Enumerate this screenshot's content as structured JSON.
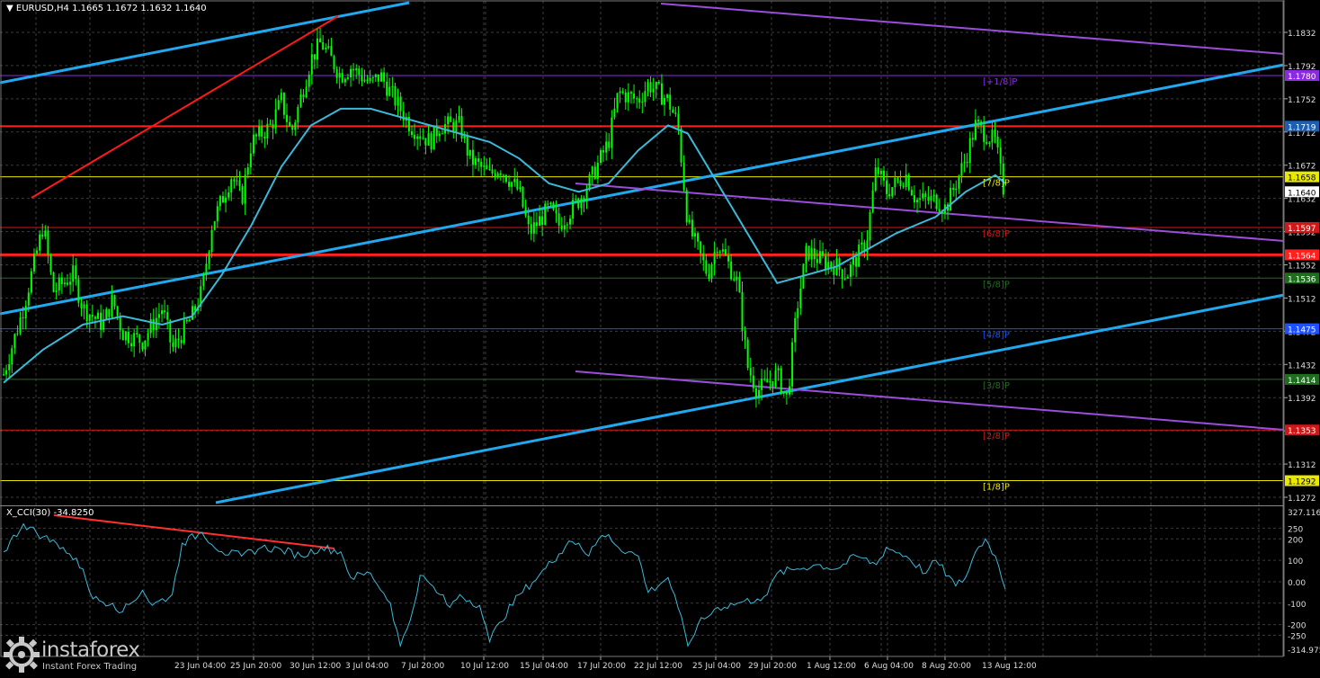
{
  "header": {
    "arrow": "▼",
    "symbol": "EURUSD,H4",
    "ohlc": "1.1665 1.1672 1.1632 1.1640"
  },
  "indicator": {
    "name": "X_CCI(30)",
    "value": "-34.8250"
  },
  "watermark": {
    "brand": "instaforex",
    "tagline": "Instant Forex Trading"
  },
  "colors": {
    "candle": "#00ff00",
    "ma": "#3cb9d8",
    "cci": "#3cb9d8",
    "channel": "#21a9f0",
    "trend": "#ff1a1a",
    "purple": "#9b4ddb",
    "grid": "#3b3b3b"
  },
  "chart_data": {
    "type": "candlestick",
    "symbol": "EURUSD",
    "timeframe": "H4",
    "ylim": [
      1.1262,
      1.1872
    ],
    "price_ticks": [
      "1.1832",
      "1.1792",
      "1.1752",
      "1.1712",
      "1.1672",
      "1.1632",
      "1.1592",
      "1.1552",
      "1.1512",
      "1.1472",
      "1.1432",
      "1.1392",
      "1.1352",
      "1.1312",
      "1.1272"
    ],
    "time_ticks": [
      "23 Jun 04:00",
      "25 Jun 20:00",
      "30 Jun 12:00",
      "3 Jul 04:00",
      "7 Jul 20:00",
      "10 Jul 12:00",
      "15 Jul 04:00",
      "17 Jul 20:00",
      "22 Jul 12:00",
      "25 Jul 04:00",
      "29 Jul 20:00",
      "1 Aug 12:00",
      "6 Aug 04:00",
      "8 Aug 20:00",
      "13 Aug 12:00"
    ],
    "levels": [
      {
        "value": "1.1719",
        "label": "",
        "color": "#ff2020",
        "box": "#1a5fb4",
        "width": 2
      },
      {
        "value": "1.1780",
        "label": "[+1/8]P",
        "color": "#8a2be2",
        "box": "#8a2be2",
        "width": 1
      },
      {
        "value": "1.1658",
        "label": "[7/8]P",
        "color": "#e8e800",
        "box": "#e8e800",
        "width": 1
      },
      {
        "value": "1.1640",
        "label": "",
        "color": "",
        "box": "#ffffff",
        "width": 0
      },
      {
        "value": "1.1597",
        "label": "[6/8]P",
        "color": "#d01818",
        "box": "#d01818",
        "width": 1
      },
      {
        "value": "1.1564",
        "label": "",
        "color": "#ff2020",
        "box": "#ff2020",
        "width": 3
      },
      {
        "value": "1.1536",
        "label": "[5/8]P",
        "color": "#1f6e1f",
        "box": "#1f6e1f",
        "width": 1
      },
      {
        "value": "1.1475",
        "label": "[4/8]P",
        "color": "#1e50ff",
        "box": "#1e50ff",
        "width": 1
      },
      {
        "value": "1.1414",
        "label": "[3/8]P",
        "color": "#1f6e1f",
        "box": "#1f6e1f",
        "width": 1
      },
      {
        "value": "1.1353",
        "label": "[2/8]P",
        "color": "#d01818",
        "box": "#d01818",
        "width": 1
      },
      {
        "value": "1.1292",
        "label": "[1/8]P",
        "color": "#e8e800",
        "box": "#e8e800",
        "width": 1
      }
    ],
    "price_path": [
      [
        0,
        1.142
      ],
      [
        2,
        1.15
      ],
      [
        4,
        1.16
      ],
      [
        5,
        1.152
      ],
      [
        7,
        1.154
      ],
      [
        8,
        1.15
      ],
      [
        10,
        1.148
      ],
      [
        11,
        1.151
      ],
      [
        12,
        1.147
      ],
      [
        14,
        1.146
      ],
      [
        16,
        1.15
      ],
      [
        17,
        1.145
      ],
      [
        19,
        1.149
      ],
      [
        20,
        1.152
      ],
      [
        21,
        1.16
      ],
      [
        23,
        1.166
      ],
      [
        24,
        1.163
      ],
      [
        25,
        1.17
      ],
      [
        27,
        1.172
      ],
      [
        28,
        1.175
      ],
      [
        29,
        1.171
      ],
      [
        31,
        1.18
      ],
      [
        32,
        1.182
      ],
      [
        34,
        1.178
      ],
      [
        35,
        1.179
      ],
      [
        37,
        1.177
      ],
      [
        38,
        1.178
      ],
      [
        40,
        1.174
      ],
      [
        41,
        1.172
      ],
      [
        43,
        1.17
      ],
      [
        44,
        1.172
      ],
      [
        46,
        1.172
      ],
      [
        47,
        1.168
      ],
      [
        49,
        1.166
      ],
      [
        50,
        1.167
      ],
      [
        52,
        1.164
      ],
      [
        53,
        1.159
      ],
      [
        55,
        1.162
      ],
      [
        56,
        1.16
      ],
      [
        58,
        1.163
      ],
      [
        59,
        1.165
      ],
      [
        61,
        1.17
      ],
      [
        62,
        1.176
      ],
      [
        64,
        1.175
      ],
      [
        65,
        1.177
      ],
      [
        67,
        1.175
      ],
      [
        68,
        1.172
      ],
      [
        69,
        1.16
      ],
      [
        71,
        1.154
      ],
      [
        72,
        1.158
      ],
      [
        74,
        1.153
      ],
      [
        75,
        1.143
      ],
      [
        76,
        1.14
      ],
      [
        78,
        1.142
      ],
      [
        79,
        1.139
      ],
      [
        80,
        1.15
      ],
      [
        81,
        1.157
      ],
      [
        82,
        1.156
      ],
      [
        84,
        1.155
      ],
      [
        85,
        1.154
      ],
      [
        87,
        1.158
      ],
      [
        88,
        1.167
      ],
      [
        89,
        1.164
      ],
      [
        91,
        1.166
      ],
      [
        92,
        1.163
      ],
      [
        94,
        1.163
      ],
      [
        95,
        1.162
      ],
      [
        97,
        1.168
      ],
      [
        98,
        1.172
      ],
      [
        100,
        1.17
      ],
      [
        101,
        1.163
      ]
    ],
    "ma_path": [
      [
        0,
        1.141
      ],
      [
        4,
        1.145
      ],
      [
        8,
        1.148
      ],
      [
        12,
        1.149
      ],
      [
        16,
        1.148
      ],
      [
        19,
        1.149
      ],
      [
        22,
        1.154
      ],
      [
        25,
        1.16
      ],
      [
        28,
        1.167
      ],
      [
        31,
        1.172
      ],
      [
        34,
        1.174
      ],
      [
        37,
        1.174
      ],
      [
        40,
        1.173
      ],
      [
        43,
        1.172
      ],
      [
        46,
        1.171
      ],
      [
        49,
        1.17
      ],
      [
        52,
        1.168
      ],
      [
        55,
        1.165
      ],
      [
        58,
        1.164
      ],
      [
        61,
        1.165
      ],
      [
        64,
        1.169
      ],
      [
        67,
        1.172
      ],
      [
        69,
        1.171
      ],
      [
        72,
        1.165
      ],
      [
        75,
        1.159
      ],
      [
        78,
        1.153
      ],
      [
        81,
        1.154
      ],
      [
        84,
        1.155
      ],
      [
        87,
        1.157
      ],
      [
        90,
        1.159
      ],
      [
        94,
        1.161
      ],
      [
        97,
        1.164
      ],
      [
        100,
        1.166
      ],
      [
        101,
        1.165
      ]
    ],
    "cci_ylim": [
      -314.975,
      327.116
    ],
    "cci_ticks": [
      "327.116",
      "250",
      "200",
      "100",
      "0.00",
      "-100",
      "-200",
      "-250",
      "-314.975"
    ],
    "cci_path": [
      [
        0,
        140
      ],
      [
        2,
        270
      ],
      [
        4,
        210
      ],
      [
        6,
        160
      ],
      [
        8,
        60
      ],
      [
        9,
        -80
      ],
      [
        11,
        -100
      ],
      [
        12,
        -140
      ],
      [
        14,
        -40
      ],
      [
        15,
        -110
      ],
      [
        17,
        -60
      ],
      [
        18,
        180
      ],
      [
        20,
        230
      ],
      [
        22,
        140
      ],
      [
        24,
        120
      ],
      [
        26,
        160
      ],
      [
        28,
        150
      ],
      [
        30,
        120
      ],
      [
        32,
        160
      ],
      [
        34,
        140
      ],
      [
        35,
        20
      ],
      [
        37,
        40
      ],
      [
        39,
        -100
      ],
      [
        40,
        -300
      ],
      [
        41,
        -180
      ],
      [
        42,
        30
      ],
      [
        44,
        -60
      ],
      [
        45,
        -120
      ],
      [
        46,
        -60
      ],
      [
        48,
        -110
      ],
      [
        49,
        -280
      ],
      [
        50,
        -190
      ],
      [
        52,
        -60
      ],
      [
        54,
        30
      ],
      [
        56,
        130
      ],
      [
        57,
        190
      ],
      [
        58,
        180
      ],
      [
        59,
        120
      ],
      [
        60,
        200
      ],
      [
        61,
        220
      ],
      [
        62,
        160
      ],
      [
        64,
        120
      ],
      [
        65,
        -50
      ],
      [
        67,
        20
      ],
      [
        68,
        -120
      ],
      [
        69,
        -300
      ],
      [
        70,
        -200
      ],
      [
        72,
        -120
      ],
      [
        74,
        -100
      ],
      [
        76,
        -80
      ],
      [
        77,
        -60
      ],
      [
        78,
        40
      ],
      [
        80,
        60
      ],
      [
        82,
        80
      ],
      [
        84,
        60
      ],
      [
        86,
        120
      ],
      [
        88,
        80
      ],
      [
        89,
        160
      ],
      [
        91,
        120
      ],
      [
        93,
        40
      ],
      [
        94,
        100
      ],
      [
        96,
        -20
      ],
      [
        97,
        20
      ],
      [
        98,
        140
      ],
      [
        99,
        200
      ],
      [
        100,
        120
      ],
      [
        101,
        -34.8
      ]
    ]
  }
}
